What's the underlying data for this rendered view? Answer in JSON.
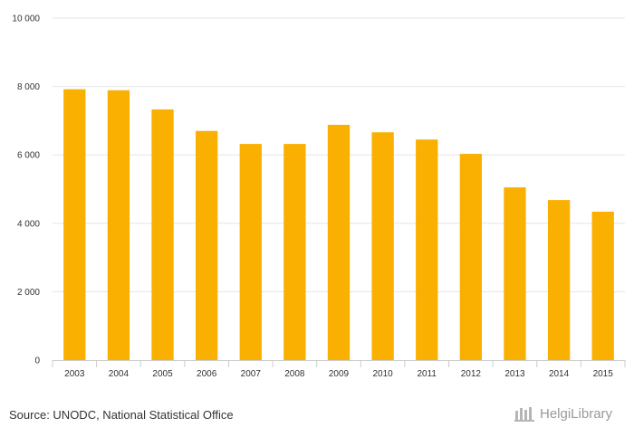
{
  "chart_data": {
    "type": "bar",
    "categories": [
      "2003",
      "2004",
      "2005",
      "2006",
      "2007",
      "2008",
      "2009",
      "2010",
      "2011",
      "2012",
      "2013",
      "2014",
      "2015"
    ],
    "values": [
      7920,
      7890,
      7330,
      6700,
      6320,
      6320,
      6880,
      6660,
      6450,
      6030,
      5050,
      4680,
      4340
    ],
    "ylim": [
      0,
      10000
    ],
    "yticks": [
      0,
      2000,
      4000,
      6000,
      8000,
      10000
    ],
    "ytick_labels": [
      "0",
      "2 000",
      "4 000",
      "6 000",
      "8 000",
      "10 000"
    ],
    "grid": true,
    "bar_color": "#f9b000",
    "grid_color": "#e6e6e6"
  },
  "footer": {
    "source": "Source: UNODC, National Statistical Office",
    "brand": "HelgiLibrary"
  }
}
